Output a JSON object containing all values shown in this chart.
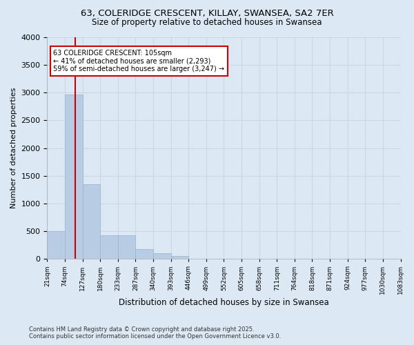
{
  "title_line1": "63, COLERIDGE CRESCENT, KILLAY, SWANSEA, SA2 7ER",
  "title_line2": "Size of property relative to detached houses in Swansea",
  "xlabel": "Distribution of detached houses by size in Swansea",
  "ylabel": "Number of detached properties",
  "footer_line1": "Contains HM Land Registry data © Crown copyright and database right 2025.",
  "footer_line2": "Contains public sector information licensed under the Open Government Licence v3.0.",
  "bins": [
    "21sqm",
    "74sqm",
    "127sqm",
    "180sqm",
    "233sqm",
    "287sqm",
    "340sqm",
    "393sqm",
    "446sqm",
    "499sqm",
    "552sqm",
    "605sqm",
    "658sqm",
    "711sqm",
    "764sqm",
    "818sqm",
    "871sqm",
    "924sqm",
    "977sqm",
    "1030sqm",
    "1083sqm"
  ],
  "values": [
    500,
    2970,
    1350,
    430,
    430,
    175,
    100,
    50,
    0,
    0,
    0,
    0,
    0,
    0,
    0,
    0,
    0,
    0,
    0,
    0
  ],
  "bar_color": "#b8cce4",
  "bar_edge_color": "#9ab0cc",
  "grid_color": "#c8d8e8",
  "bg_color": "#dce8f4",
  "property_line_x": 1.6,
  "annotation_text": "63 COLERIDGE CRESCENT: 105sqm\n← 41% of detached houses are smaller (2,293)\n59% of semi-detached houses are larger (3,247) →",
  "annotation_box_color": "#ffffff",
  "annotation_box_edge": "#cc0000",
  "vline_color": "#cc0000",
  "ylim": [
    0,
    4000
  ],
  "yticks": [
    0,
    500,
    1000,
    1500,
    2000,
    2500,
    3000,
    3500,
    4000
  ]
}
